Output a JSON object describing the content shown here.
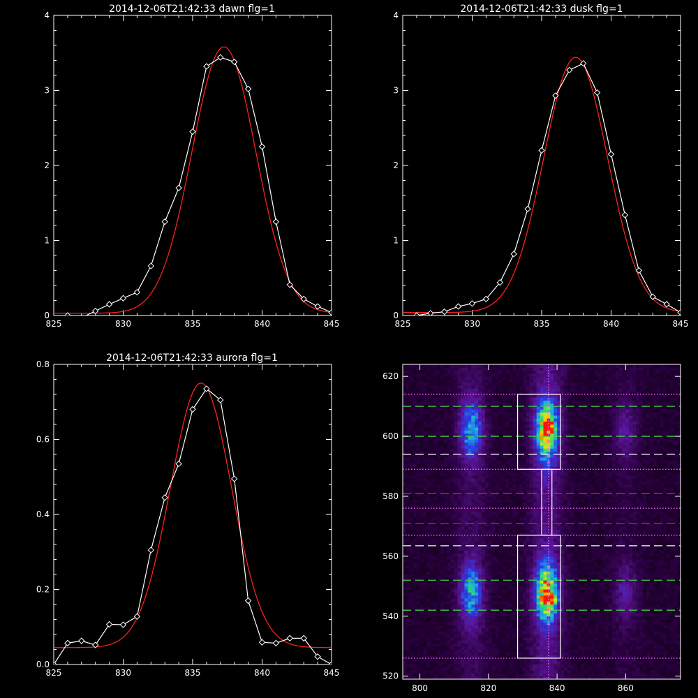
{
  "figure": {
    "background": "#000000",
    "foreground": "#ffffff"
  },
  "chart_data": [
    {
      "type": "line",
      "title": "2014-12-06T21:42:33 dawn flg=1",
      "xlim": [
        825,
        845
      ],
      "ylim": [
        0,
        4
      ],
      "xticks": [
        "825",
        "830",
        "835",
        "840",
        "845"
      ],
      "yticks": [
        "0",
        "1",
        "2",
        "3",
        "4"
      ],
      "data_color": "#ffffff",
      "fit_color": "#ff2020",
      "data": {
        "x": [
          826,
          827,
          828,
          829,
          830,
          831,
          832,
          833,
          834,
          835,
          836,
          837,
          838,
          839,
          840,
          841,
          842,
          843,
          844,
          845
        ],
        "y": [
          0.0,
          -0.03,
          0.06,
          0.15,
          0.23,
          0.31,
          0.66,
          1.25,
          1.7,
          2.45,
          3.32,
          3.44,
          3.38,
          3.02,
          2.25,
          1.25,
          0.41,
          0.22,
          0.12,
          0.04
        ]
      },
      "fit": {
        "model": "gaussian",
        "amplitude": 3.55,
        "center": 837.25,
        "sigma": 2.3,
        "baseline": 0.03
      }
    },
    {
      "type": "line",
      "title": "2014-12-06T21:42:33 dusk flg=1",
      "xlim": [
        825,
        845
      ],
      "ylim": [
        0,
        4
      ],
      "xticks": [
        "825",
        "830",
        "835",
        "840",
        "845"
      ],
      "yticks": [
        "0",
        "1",
        "2",
        "3",
        "4"
      ],
      "data_color": "#ffffff",
      "fit_color": "#ff2020",
      "data": {
        "x": [
          826,
          827,
          828,
          829,
          830,
          831,
          832,
          833,
          834,
          835,
          836,
          837,
          838,
          839,
          840,
          841,
          842,
          843,
          844,
          845
        ],
        "y": [
          0.0,
          0.03,
          0.05,
          0.12,
          0.16,
          0.22,
          0.44,
          0.82,
          1.42,
          2.2,
          2.93,
          3.27,
          3.36,
          2.97,
          2.15,
          1.34,
          0.6,
          0.25,
          0.15,
          0.04
        ]
      },
      "fit": {
        "model": "gaussian",
        "amplitude": 3.4,
        "center": 837.45,
        "sigma": 2.3,
        "baseline": 0.04
      }
    },
    {
      "type": "line",
      "title": "2014-12-06T21:42:33 aurora flg=1",
      "xlim": [
        825,
        845
      ],
      "ylim": [
        0,
        0.8
      ],
      "xticks": [
        "825",
        "830",
        "835",
        "840",
        "845"
      ],
      "yticks": [
        "0.0",
        "0.2",
        "0.4",
        "0.6",
        "0.8"
      ],
      "data_color": "#ffffff",
      "fit_color": "#ff2020",
      "data": {
        "x": [
          825,
          826,
          827,
          828,
          829,
          830,
          831,
          832,
          833,
          834,
          835,
          836,
          837,
          838,
          839,
          840,
          841,
          842,
          843,
          844,
          845
        ],
        "y": [
          0.0,
          0.057,
          0.063,
          0.052,
          0.107,
          0.106,
          0.128,
          0.305,
          0.445,
          0.535,
          0.68,
          0.735,
          0.705,
          0.495,
          0.17,
          0.059,
          0.057,
          0.07,
          0.07,
          0.021,
          0.0
        ]
      },
      "fit": {
        "model": "gaussian",
        "amplitude": 0.705,
        "center": 835.6,
        "sigma": 2.2,
        "baseline": 0.045
      }
    },
    {
      "type": "heatmap",
      "title": "",
      "xlim": [
        795,
        876
      ],
      "ylim": [
        519,
        624
      ],
      "xticks": [
        {
          "value": 800,
          "label": "800"
        },
        {
          "value": 820,
          "label": "820"
        },
        {
          "value": 840,
          "label": "840"
        },
        {
          "value": 860,
          "label": "860"
        }
      ],
      "yticks": [
        {
          "value": 520,
          "label": "520"
        },
        {
          "value": 540,
          "label": "540"
        },
        {
          "value": 560,
          "label": "560"
        },
        {
          "value": 580,
          "label": "580"
        },
        {
          "value": 600,
          "label": "600"
        },
        {
          "value": 620,
          "label": "620"
        }
      ],
      "colormap": "black-purple-blue-cyan-green-yellow-red",
      "emission_columns": [
        {
          "x": 815,
          "relative_intensity": 0.55
        },
        {
          "x": 837,
          "relative_intensity": 1.0
        },
        {
          "x": 860,
          "relative_intensity": 0.22
        }
      ],
      "emission_regions": [
        {
          "y_center": 602,
          "y_halfwidth": 9
        },
        {
          "y_center": 548,
          "y_halfwidth": 9
        }
      ],
      "peak_points": [
        {
          "x": 838,
          "y": 603
        },
        {
          "x": 838,
          "y": 546
        }
      ],
      "vertical_marker": {
        "x": 837.5,
        "color": "#ff66ff",
        "style": "dotted"
      },
      "boxes": [
        {
          "x0": 828.5,
          "x1": 841,
          "y0": 589,
          "y1": 614
        },
        {
          "x0": 835.5,
          "x1": 838.5,
          "y0": 567,
          "y1": 589
        },
        {
          "x0": 828.5,
          "x1": 841,
          "y0": 526,
          "y1": 567
        }
      ],
      "hlines": [
        {
          "y": 614,
          "color": "#ff66ff",
          "style": "dotted"
        },
        {
          "y": 610,
          "color": "#40d040",
          "style": "dashed"
        },
        {
          "y": 600,
          "color": "#40d040",
          "style": "dashed"
        },
        {
          "y": 594,
          "color": "#ffffff",
          "style": "dashed"
        },
        {
          "y": 589,
          "color": "#ff66ff",
          "style": "dotted"
        },
        {
          "y": 581,
          "color": "#e02020",
          "style": "dashed"
        },
        {
          "y": 576,
          "color": "#ff66ff",
          "style": "dotted"
        },
        {
          "y": 571,
          "color": "#e02020",
          "style": "dashed"
        },
        {
          "y": 567,
          "color": "#ff66ff",
          "style": "dotted"
        },
        {
          "y": 563.5,
          "color": "#ffffff",
          "style": "dashed"
        },
        {
          "y": 552,
          "color": "#40d040",
          "style": "dashed"
        },
        {
          "y": 542,
          "color": "#40d040",
          "style": "dashed"
        },
        {
          "y": 526,
          "color": "#ff66ff",
          "style": "dotted"
        }
      ]
    }
  ]
}
